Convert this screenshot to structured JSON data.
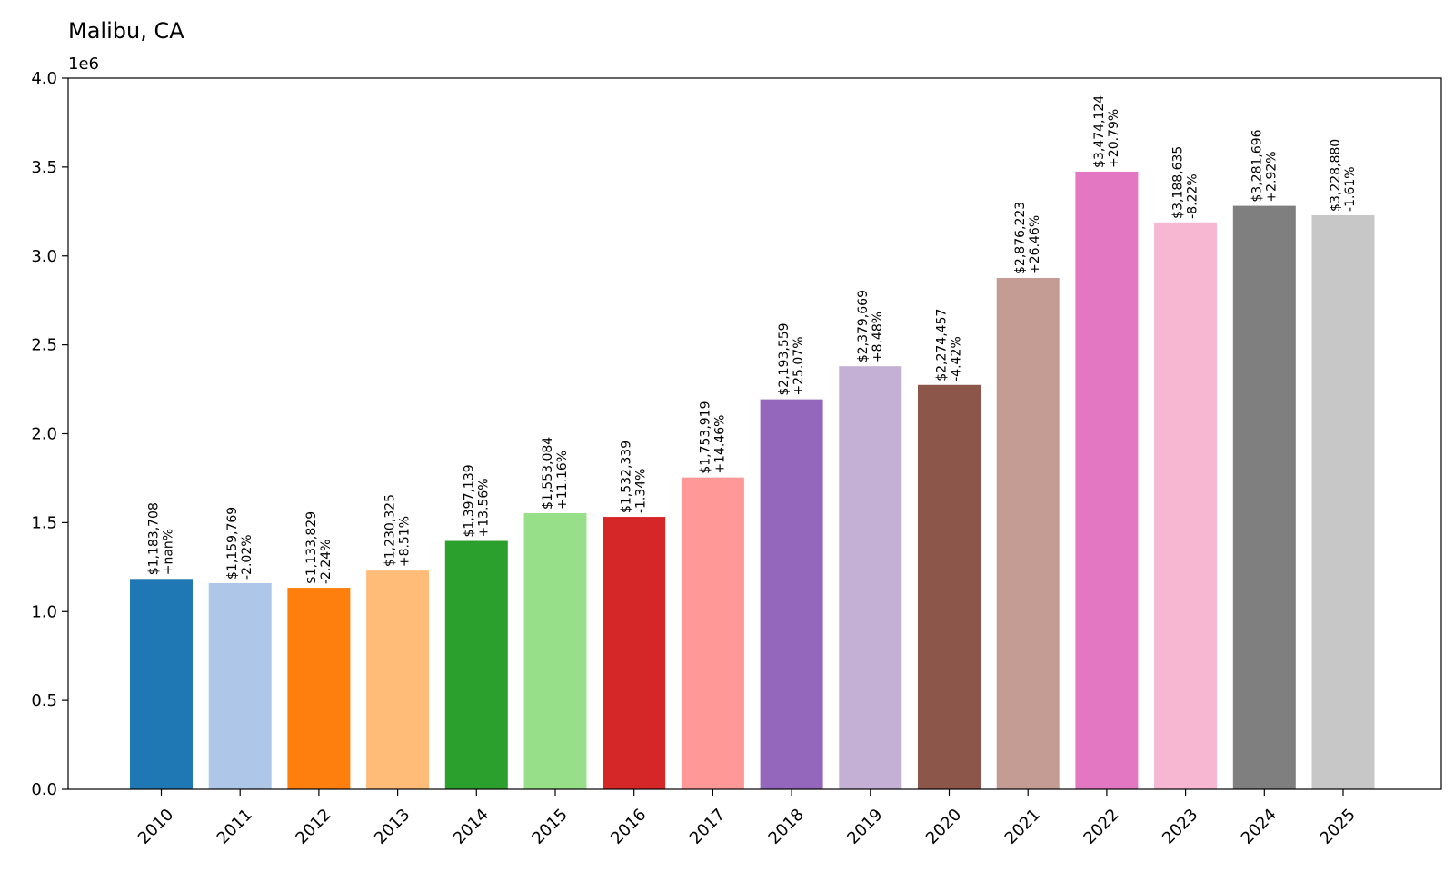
{
  "chart_data": {
    "type": "bar",
    "title": "Malibu, CA",
    "xlabel": "",
    "ylabel": "",
    "y_offset_label": "1e6",
    "ylim": [
      0,
      4.0
    ],
    "y_ticks": [
      "0.0",
      "0.5",
      "1.0",
      "1.5",
      "2.0",
      "2.5",
      "3.0",
      "3.5",
      "4.0"
    ],
    "grid": false,
    "categories": [
      "2010",
      "2011",
      "2012",
      "2013",
      "2014",
      "2015",
      "2016",
      "2017",
      "2018",
      "2019",
      "2020",
      "2021",
      "2022",
      "2023",
      "2024",
      "2025"
    ],
    "values": [
      1183708,
      1159769,
      1133829,
      1230325,
      1397139,
      1553084,
      1532339,
      1753919,
      2193559,
      2379669,
      2274457,
      2876223,
      3474124,
      3188635,
      3281696,
      3228880
    ],
    "value_labels": [
      "$1,183,708",
      "$1,159,769",
      "$1,133,829",
      "$1,230,325",
      "$1,397,139",
      "$1,553,084",
      "$1,532,339",
      "$1,753,919",
      "$2,193,559",
      "$2,379,669",
      "$2,274,457",
      "$2,876,223",
      "$3,474,124",
      "$3,188,635",
      "$3,281,696",
      "$3,228,880"
    ],
    "change_labels": [
      "+nan%",
      "-2.02%",
      "-2.24%",
      "+8.51%",
      "+13.56%",
      "+11.16%",
      "-1.34%",
      "+14.46%",
      "+25.07%",
      "+8.48%",
      "-4.42%",
      "+26.46%",
      "+20.79%",
      "-8.22%",
      "+2.92%",
      "-1.61%"
    ],
    "colors": [
      "#1f77b4",
      "#aec7e8",
      "#ff7f0e",
      "#ffbb78",
      "#2ca02c",
      "#98df8a",
      "#d62728",
      "#ff9896",
      "#9467bd",
      "#c5b0d5",
      "#8c564b",
      "#c49c94",
      "#e377c2",
      "#f7b6d2",
      "#7f7f7f",
      "#c7c7c7"
    ]
  }
}
